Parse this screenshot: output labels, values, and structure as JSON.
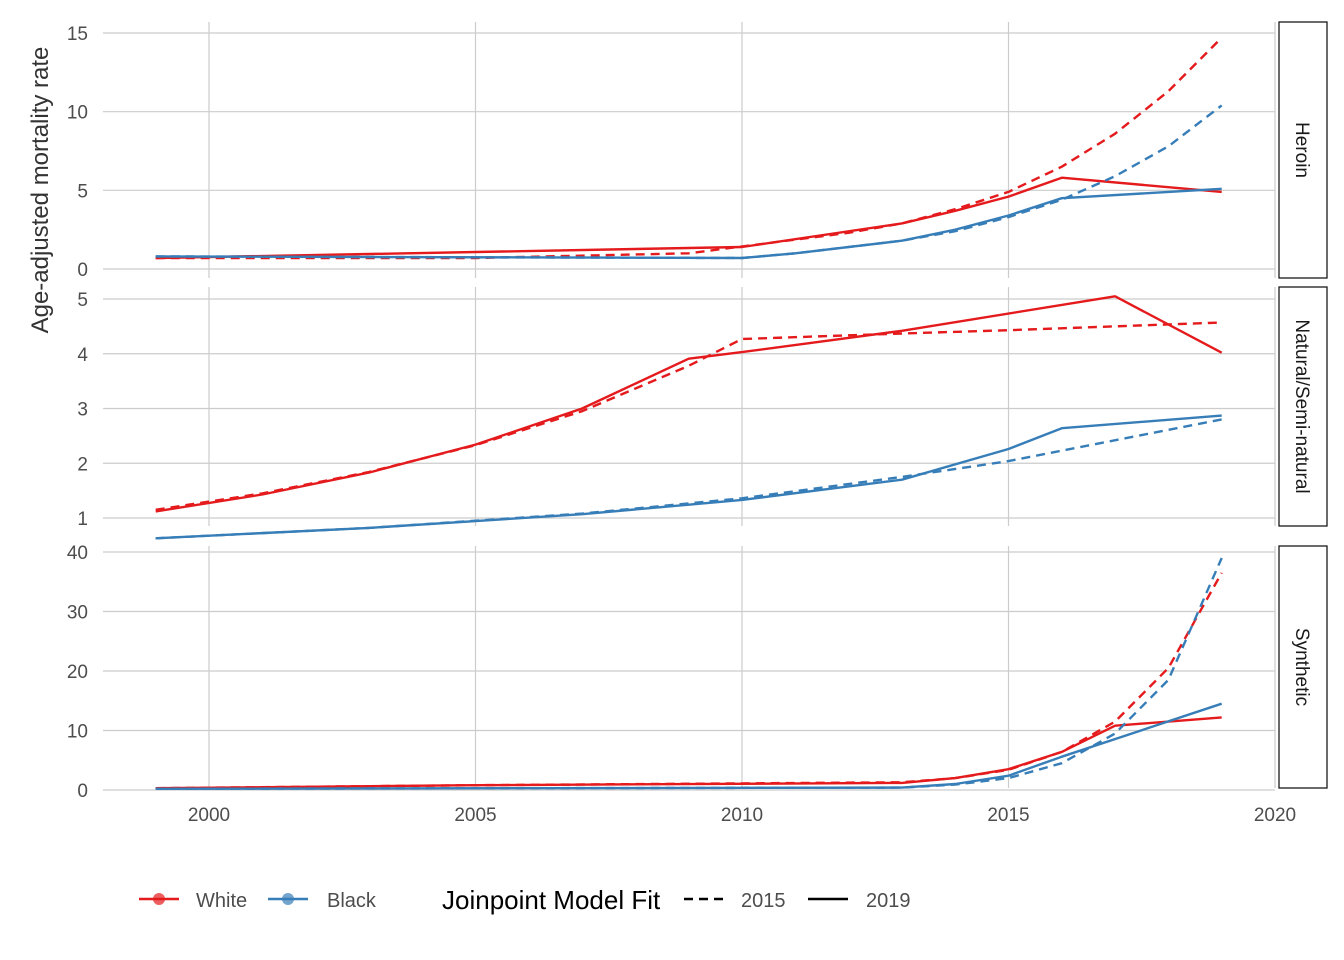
{
  "chart_data": {
    "type": "line",
    "title": "",
    "ylabel": "Age-adjusted mortality rate",
    "xlabel": "",
    "x_ticks": [
      2000,
      2005,
      2010,
      2015,
      2020
    ],
    "xlim": [
      1998,
      2020
    ],
    "grid": true,
    "legend_position": "bottom",
    "colors": {
      "White": "#e41a1c",
      "Black": "#377eb8"
    },
    "legend": {
      "race": [
        "White",
        "Black"
      ],
      "fit_title": "Joinpoint Model Fit",
      "fit": [
        {
          "label": "2015",
          "dash": "dashed"
        },
        {
          "label": "2019",
          "dash": "solid"
        }
      ]
    },
    "panels": [
      {
        "strip": "Heroin",
        "ylim": [
          0,
          15
        ],
        "y_ticks": [
          0,
          5,
          10,
          15
        ],
        "series": [
          {
            "name": "White",
            "fit": "2019",
            "x": [
              1999,
              2010,
              2013,
              2014,
              2015,
              2016,
              2019
            ],
            "y": [
              0.7,
              1.4,
              2.9,
              3.7,
              4.6,
              5.8,
              4.9
            ]
          },
          {
            "name": "White",
            "fit": "2015",
            "x": [
              1999,
              2005,
              2009,
              2012,
              2013,
              2014,
              2015,
              2016,
              2017,
              2018,
              2019
            ],
            "y": [
              0.7,
              0.7,
              1.0,
              2.3,
              2.9,
              3.8,
              4.9,
              6.5,
              8.6,
              11.3,
              14.7
            ]
          },
          {
            "name": "Black",
            "fit": "2019",
            "x": [
              1999,
              2010,
              2011,
              2013,
              2014,
              2015,
              2016,
              2019
            ],
            "y": [
              0.8,
              0.7,
              1.0,
              1.8,
              2.5,
              3.4,
              4.5,
              5.1
            ]
          },
          {
            "name": "Black",
            "fit": "2015",
            "x": [
              1999,
              2010,
              2011,
              2013,
              2014,
              2015,
              2016,
              2017,
              2018,
              2019
            ],
            "y": [
              0.8,
              0.7,
              1.0,
              1.8,
              2.4,
              3.3,
              4.4,
              5.9,
              7.8,
              10.4
            ]
          }
        ]
      },
      {
        "strip": "Natural/Semi-natural",
        "ylim": [
          0.6,
          5.25
        ],
        "y_ticks": [
          1,
          2,
          3,
          4,
          5
        ],
        "series": [
          {
            "name": "White",
            "fit": "2019",
            "x": [
              1999,
              2001,
              2003,
              2005,
              2007,
              2009,
              2010,
              2013,
              2017,
              2019
            ],
            "y": [
              1.12,
              1.43,
              1.83,
              2.34,
              3.0,
              3.91,
              4.03,
              4.42,
              5.05,
              4.02
            ]
          },
          {
            "name": "White",
            "fit": "2015",
            "x": [
              1999,
              2001,
              2003,
              2005,
              2007,
              2009,
              2010,
              2013,
              2015,
              2019
            ],
            "y": [
              1.15,
              1.45,
              1.84,
              2.33,
              2.95,
              3.78,
              4.27,
              4.37,
              4.43,
              4.57
            ]
          },
          {
            "name": "Black",
            "fit": "2019",
            "x": [
              1999,
              2003,
              2007,
              2010,
              2013,
              2015,
              2016,
              2019
            ],
            "y": [
              0.63,
              0.82,
              1.07,
              1.33,
              1.7,
              2.26,
              2.64,
              2.87
            ]
          },
          {
            "name": "Black",
            "fit": "2015",
            "x": [
              1999,
              2003,
              2007,
              2010,
              2013,
              2015,
              2019
            ],
            "y": [
              0.63,
              0.82,
              1.08,
              1.36,
              1.75,
              2.04,
              2.8
            ]
          }
        ]
      },
      {
        "strip": "Synthetic",
        "ylim": [
          -2,
          40
        ],
        "y_ticks": [
          0,
          10,
          20,
          30,
          40
        ],
        "series": [
          {
            "name": "White",
            "fit": "2019",
            "x": [
              1999,
              2005,
              2013,
              2014,
              2015,
              2016,
              2017,
              2019
            ],
            "y": [
              0.3,
              0.8,
              1.2,
              2.0,
              3.5,
              6.4,
              10.8,
              12.2
            ]
          },
          {
            "name": "White",
            "fit": "2015",
            "x": [
              1999,
              2005,
              2013,
              2014,
              2015,
              2016,
              2017,
              2018,
              2019
            ],
            "y": [
              0.3,
              0.8,
              1.3,
              2.0,
              3.4,
              6.4,
              11.5,
              20.5,
              36.5
            ]
          },
          {
            "name": "Black",
            "fit": "2019",
            "x": [
              1999,
              2013,
              2014,
              2015,
              2016,
              2019
            ],
            "y": [
              0.2,
              0.4,
              1.0,
              2.4,
              5.6,
              14.5
            ]
          },
          {
            "name": "Black",
            "fit": "2015",
            "x": [
              1999,
              2013,
              2014,
              2015,
              2016,
              2017,
              2018,
              2019
            ],
            "y": [
              0.2,
              0.4,
              0.9,
              2.0,
              4.5,
              9.5,
              18.5,
              39.0
            ]
          }
        ]
      }
    ]
  }
}
